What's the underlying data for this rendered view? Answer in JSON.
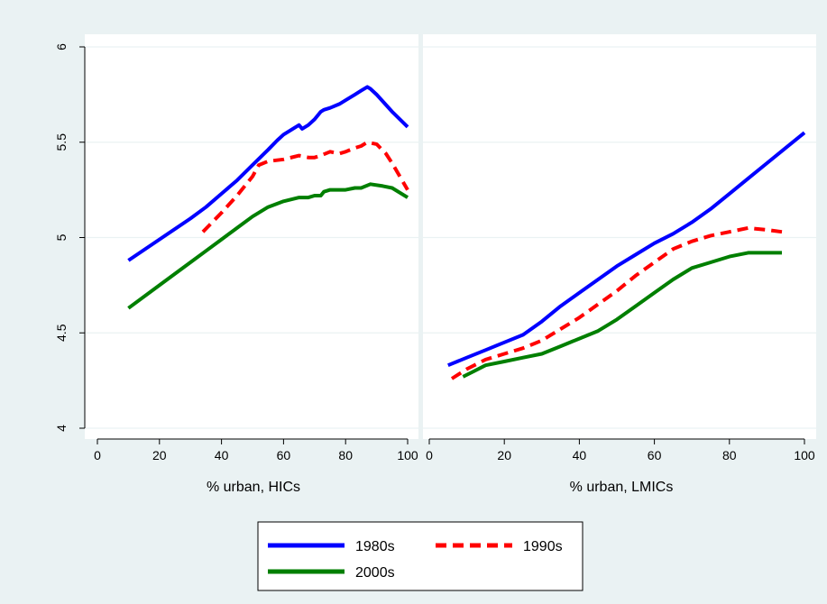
{
  "chart_data": [
    {
      "type": "line",
      "panel": "HICs",
      "xlabel": "% urban, HICs",
      "ylabel": "",
      "xlim": [
        0,
        100
      ],
      "ylim": [
        4,
        6
      ],
      "xticks": [
        0,
        20,
        40,
        60,
        80,
        100
      ],
      "yticks": [
        4,
        4.5,
        5,
        5.5,
        6
      ],
      "series": [
        {
          "name": "1980s",
          "x": [
            10,
            20,
            30,
            35,
            40,
            45,
            50,
            55,
            58,
            60,
            63,
            65,
            66,
            68,
            70,
            72,
            73,
            75,
            78,
            80,
            83,
            85,
            87,
            88,
            90,
            95,
            100
          ],
          "y": [
            4.88,
            4.99,
            5.1,
            5.16,
            5.23,
            5.3,
            5.38,
            5.46,
            5.51,
            5.54,
            5.57,
            5.59,
            5.57,
            5.59,
            5.62,
            5.66,
            5.67,
            5.68,
            5.7,
            5.72,
            5.75,
            5.77,
            5.79,
            5.78,
            5.75,
            5.66,
            5.58
          ]
        },
        {
          "name": "1990s",
          "x": [
            34,
            40,
            45,
            50,
            52,
            55,
            60,
            65,
            68,
            70,
            72,
            75,
            78,
            80,
            83,
            85,
            87,
            90,
            93,
            95,
            100
          ],
          "y": [
            5.03,
            5.13,
            5.22,
            5.32,
            5.38,
            5.4,
            5.41,
            5.43,
            5.42,
            5.42,
            5.43,
            5.45,
            5.44,
            5.45,
            5.47,
            5.48,
            5.5,
            5.49,
            5.44,
            5.39,
            5.25
          ]
        },
        {
          "name": "2000s",
          "x": [
            10,
            20,
            30,
            35,
            40,
            45,
            50,
            55,
            60,
            65,
            68,
            70,
            72,
            73,
            75,
            78,
            80,
            83,
            85,
            88,
            92,
            95,
            100
          ],
          "y": [
            4.63,
            4.75,
            4.87,
            4.93,
            4.99,
            5.05,
            5.11,
            5.16,
            5.19,
            5.21,
            5.21,
            5.22,
            5.22,
            5.24,
            5.25,
            5.25,
            5.25,
            5.26,
            5.26,
            5.28,
            5.27,
            5.26,
            5.21
          ]
        }
      ]
    },
    {
      "type": "line",
      "panel": "LMICs",
      "xlabel": "% urban, LMICs",
      "ylabel": "",
      "xlim": [
        0,
        100
      ],
      "ylim": [
        4,
        6
      ],
      "xticks": [
        0,
        20,
        40,
        60,
        80,
        100
      ],
      "yticks": [
        4,
        4.5,
        5,
        5.5,
        6
      ],
      "series": [
        {
          "name": "1980s",
          "x": [
            5,
            10,
            15,
            20,
            25,
            30,
            35,
            40,
            45,
            50,
            55,
            60,
            65,
            70,
            75,
            80,
            85,
            90,
            95,
            100
          ],
          "y": [
            4.33,
            4.37,
            4.41,
            4.45,
            4.49,
            4.56,
            4.64,
            4.71,
            4.78,
            4.85,
            4.91,
            4.97,
            5.02,
            5.08,
            5.15,
            5.23,
            5.31,
            5.39,
            5.47,
            5.55
          ]
        },
        {
          "name": "1990s",
          "x": [
            6,
            10,
            15,
            20,
            25,
            30,
            35,
            40,
            45,
            50,
            55,
            60,
            65,
            70,
            75,
            80,
            85,
            90,
            94
          ],
          "y": [
            4.26,
            4.31,
            4.36,
            4.39,
            4.42,
            4.46,
            4.52,
            4.58,
            4.65,
            4.72,
            4.8,
            4.87,
            4.94,
            4.98,
            5.01,
            5.03,
            5.05,
            5.04,
            5.03
          ]
        },
        {
          "name": "2000s",
          "x": [
            9,
            12,
            15,
            20,
            25,
            30,
            35,
            40,
            45,
            50,
            55,
            60,
            65,
            70,
            75,
            80,
            85,
            90,
            94
          ],
          "y": [
            4.27,
            4.3,
            4.33,
            4.35,
            4.37,
            4.39,
            4.43,
            4.47,
            4.51,
            4.57,
            4.64,
            4.71,
            4.78,
            4.84,
            4.87,
            4.9,
            4.92,
            4.92,
            4.92
          ]
        }
      ]
    }
  ],
  "colors": {
    "1980s": "#0000ff",
    "1990s": "#ff0000",
    "2000s": "#007f00"
  },
  "legend": {
    "placement": "bottom-center",
    "items": [
      {
        "label": "1980s",
        "style": "solid",
        "color": "#0000ff"
      },
      {
        "label": "1990s",
        "style": "dashed",
        "color": "#ff0000"
      },
      {
        "label": "2000s",
        "style": "solid",
        "color": "#007f00"
      }
    ]
  }
}
